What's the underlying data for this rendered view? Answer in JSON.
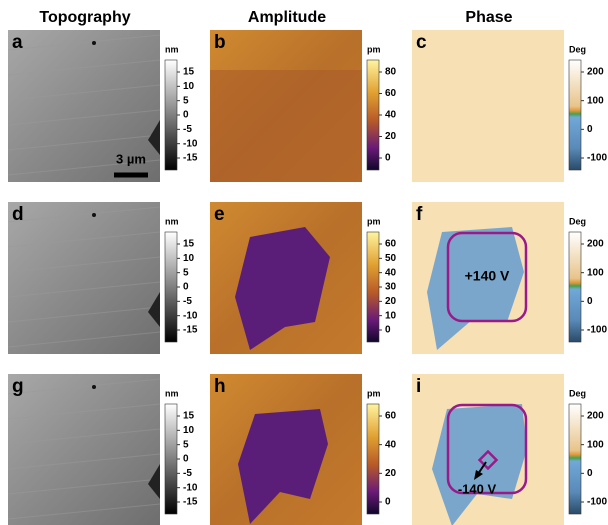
{
  "column_titles": [
    "Topography",
    "Amplitude",
    "Phase"
  ],
  "panels": [
    {
      "letter": "a",
      "unit": "nm",
      "ticks": [
        15,
        10,
        5,
        0,
        -5,
        -10,
        -15
      ]
    },
    {
      "letter": "b",
      "unit": "pm",
      "ticks": [
        80,
        60,
        40,
        20,
        0
      ]
    },
    {
      "letter": "c",
      "unit": "Deg",
      "ticks": [
        200,
        100,
        0,
        -100
      ]
    },
    {
      "letter": "d",
      "unit": "nm",
      "ticks": [
        15,
        10,
        5,
        0,
        -5,
        -10,
        -15
      ]
    },
    {
      "letter": "e",
      "unit": "pm",
      "ticks": [
        60,
        50,
        40,
        30,
        20,
        10,
        0
      ]
    },
    {
      "letter": "f",
      "unit": "Deg",
      "ticks": [
        200,
        100,
        0,
        -100
      ]
    },
    {
      "letter": "g",
      "unit": "nm",
      "ticks": [
        15,
        10,
        5,
        0,
        -5,
        -10,
        -15
      ]
    },
    {
      "letter": "h",
      "unit": "pm",
      "ticks": [
        60,
        40,
        20,
        0
      ]
    },
    {
      "letter": "i",
      "unit": "Deg",
      "ticks": [
        200,
        100,
        0,
        -100
      ]
    }
  ],
  "annotations": {
    "scale_bar": "3 µm",
    "positive_voltage": "+140 V",
    "negative_voltage": "-140 V"
  }
}
